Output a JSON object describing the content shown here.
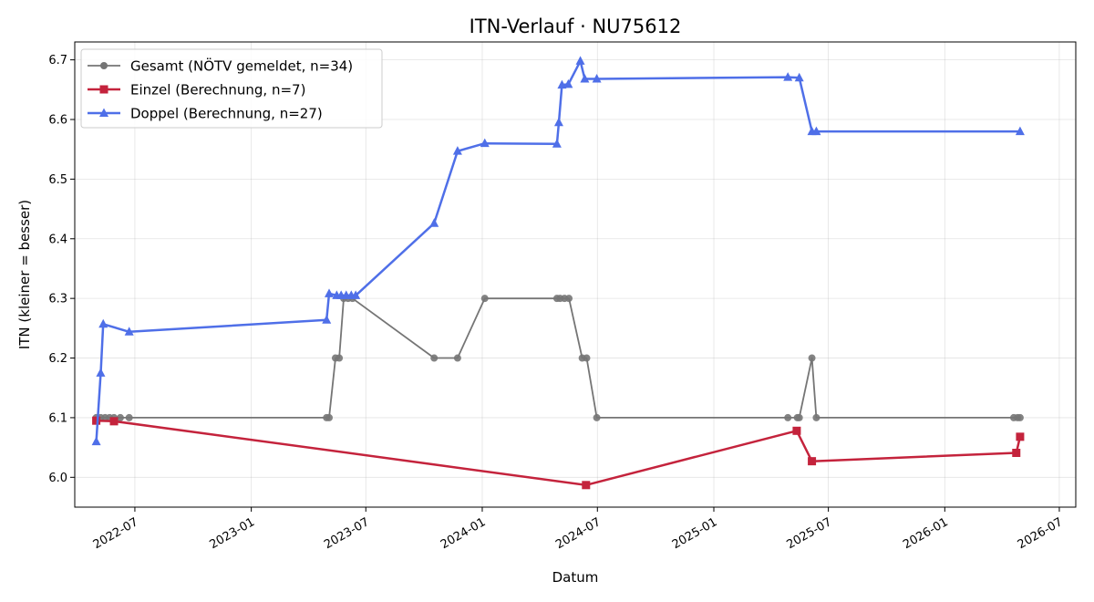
{
  "chart_data": {
    "type": "line",
    "title": "ITN-Verlauf · NU75612",
    "xlabel": "Datum",
    "ylabel": "ITN  (kleiner = besser)",
    "x_axis": "date",
    "xlim": [
      "2022-03-28",
      "2026-07-27"
    ],
    "ylim": [
      5.95,
      6.73
    ],
    "x_ticks": [
      "2022-07-01",
      "2023-01-01",
      "2023-07-01",
      "2024-01-01",
      "2024-07-01",
      "2025-01-01",
      "2025-07-01",
      "2026-01-01",
      "2026-07-01"
    ],
    "x_tick_labels": [
      "2022-07",
      "2023-01",
      "2023-07",
      "2024-01",
      "2024-07",
      "2025-01",
      "2025-07",
      "2026-01",
      "2026-07"
    ],
    "y_ticks": [
      6.0,
      6.1,
      6.2,
      6.3,
      6.4,
      6.5,
      6.6,
      6.7
    ],
    "y_tick_labels": [
      "6.0",
      "6.1",
      "6.2",
      "6.3",
      "6.4",
      "6.5",
      "6.6",
      "6.7"
    ],
    "grid": true,
    "legend_position": "top-left",
    "series": [
      {
        "name": "Gesamt (NÖTV gemeldet, n=34)",
        "color": "#757575",
        "marker": "circle",
        "points": [
          [
            "2022-05-01",
            6.1
          ],
          [
            "2022-05-08",
            6.1
          ],
          [
            "2022-05-15",
            6.1
          ],
          [
            "2022-05-22",
            6.1
          ],
          [
            "2022-05-29",
            6.1
          ],
          [
            "2022-06-08",
            6.1
          ],
          [
            "2022-06-22",
            6.1
          ],
          [
            "2023-04-30",
            6.1
          ],
          [
            "2023-05-04",
            6.1
          ],
          [
            "2023-05-14",
            6.2
          ],
          [
            "2023-05-20",
            6.2
          ],
          [
            "2023-05-27",
            6.3
          ],
          [
            "2023-06-03",
            6.3
          ],
          [
            "2023-06-10",
            6.3
          ],
          [
            "2023-10-17",
            6.2
          ],
          [
            "2023-11-23",
            6.2
          ],
          [
            "2024-01-05",
            6.3
          ],
          [
            "2024-04-28",
            6.3
          ],
          [
            "2024-05-03",
            6.3
          ],
          [
            "2024-05-10",
            6.3
          ],
          [
            "2024-05-17",
            6.3
          ],
          [
            "2024-06-07",
            6.2
          ],
          [
            "2024-06-14",
            6.2
          ],
          [
            "2024-06-30",
            6.1
          ],
          [
            "2025-04-28",
            6.1
          ],
          [
            "2025-05-13",
            6.1
          ],
          [
            "2025-05-16",
            6.1
          ],
          [
            "2025-06-05",
            6.2
          ],
          [
            "2025-06-12",
            6.1
          ],
          [
            "2026-04-20",
            6.1
          ],
          [
            "2026-04-26",
            6.1
          ],
          [
            "2026-04-30",
            6.1
          ]
        ]
      },
      {
        "name": "Einzel (Berechnung, n=7)",
        "color": "#c4233c",
        "marker": "square",
        "points": [
          [
            "2022-05-01",
            6.095
          ],
          [
            "2022-05-29",
            6.094
          ],
          [
            "2024-06-13",
            5.987
          ],
          [
            "2025-05-12",
            6.078
          ],
          [
            "2025-06-05",
            6.027
          ],
          [
            "2026-04-24",
            6.041
          ],
          [
            "2026-04-30",
            6.068
          ]
        ]
      },
      {
        "name": "Doppel (Berechnung, n=27)",
        "color": "#4f6fe8",
        "marker": "triangle",
        "points": [
          [
            "2022-05-01",
            6.06
          ],
          [
            "2022-05-08",
            6.175
          ],
          [
            "2022-05-12",
            6.257
          ],
          [
            "2022-06-22",
            6.244
          ],
          [
            "2023-04-30",
            6.264
          ],
          [
            "2023-05-04",
            6.308
          ],
          [
            "2023-05-16",
            6.305
          ],
          [
            "2023-05-23",
            6.305
          ],
          [
            "2023-05-31",
            6.305
          ],
          [
            "2023-06-08",
            6.305
          ],
          [
            "2023-06-15",
            6.305
          ],
          [
            "2023-10-17",
            6.426
          ],
          [
            "2023-11-23",
            6.547
          ],
          [
            "2024-01-05",
            6.56
          ],
          [
            "2024-04-28",
            6.559
          ],
          [
            "2024-05-01",
            6.595
          ],
          [
            "2024-05-06",
            6.658
          ],
          [
            "2024-05-16",
            6.659
          ],
          [
            "2024-06-04",
            6.698
          ],
          [
            "2024-06-11",
            6.668
          ],
          [
            "2024-06-30",
            6.668
          ],
          [
            "2025-04-28",
            6.671
          ],
          [
            "2025-05-16",
            6.67
          ],
          [
            "2025-06-05",
            6.58
          ],
          [
            "2025-06-12",
            6.58
          ],
          [
            "2026-04-30",
            6.58
          ]
        ]
      }
    ]
  }
}
